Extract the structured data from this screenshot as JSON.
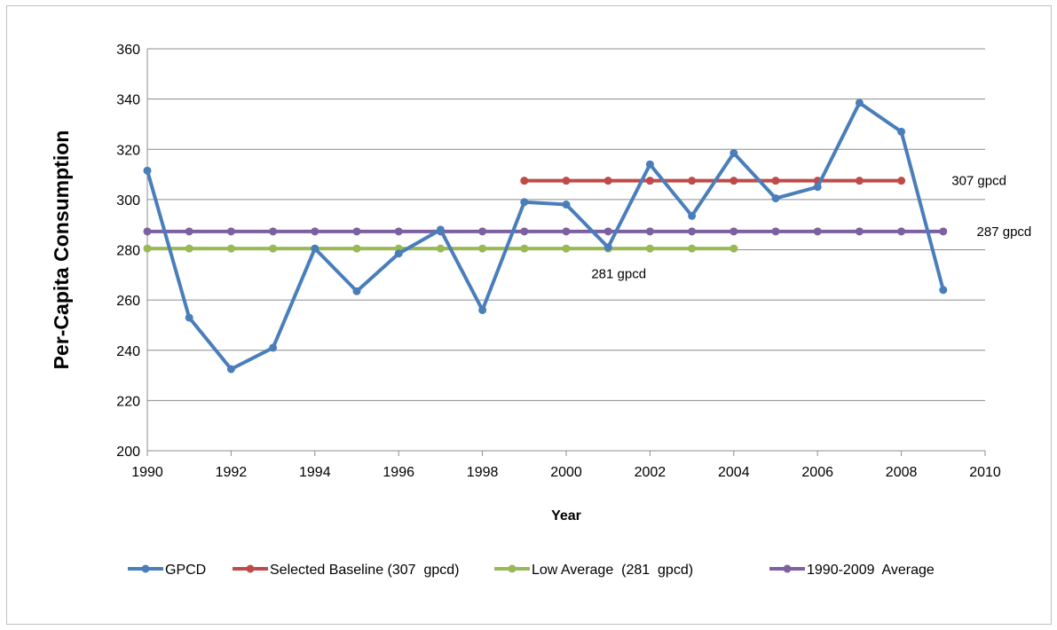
{
  "chart_data": {
    "type": "line",
    "xlabel": "Year",
    "ylabel": "Per-Capita Consumption",
    "xlim": [
      1990,
      2010
    ],
    "ylim": [
      200,
      360
    ],
    "xticks": [
      "1990",
      "1992",
      "1994",
      "1996",
      "1998",
      "2000",
      "2002",
      "2004",
      "2006",
      "2008",
      "2010"
    ],
    "yticks": [
      "200",
      "220",
      "240",
      "260",
      "280",
      "300",
      "320",
      "340",
      "360"
    ],
    "grid": "horizontal",
    "legend_position": "bottom",
    "series": [
      {
        "name": "GPCD",
        "color": "#4a7ebb",
        "points": [
          [
            1990,
            311.5
          ],
          [
            1991,
            253
          ],
          [
            1992,
            232.5
          ],
          [
            1993,
            241
          ],
          [
            1994,
            280.5
          ],
          [
            1995,
            263.5
          ],
          [
            1996,
            278.5
          ],
          [
            1997,
            288
          ],
          [
            1998,
            256
          ],
          [
            1999,
            299
          ],
          [
            2000,
            298
          ],
          [
            2001,
            281
          ],
          [
            2002,
            314
          ],
          [
            2003,
            293.5
          ],
          [
            2004,
            318.5
          ],
          [
            2005,
            300.5
          ],
          [
            2006,
            305
          ],
          [
            2007,
            338.5
          ],
          [
            2008,
            327
          ],
          [
            2009,
            264
          ]
        ]
      },
      {
        "name": "Selected Baseline (307  gpcd)",
        "color": "#be4b48",
        "points": [
          [
            1999,
            307.5
          ],
          [
            2000,
            307.5
          ],
          [
            2001,
            307.5
          ],
          [
            2002,
            307.5
          ],
          [
            2003,
            307.5
          ],
          [
            2004,
            307.5
          ],
          [
            2005,
            307.5
          ],
          [
            2006,
            307.5
          ],
          [
            2007,
            307.5
          ],
          [
            2008,
            307.5
          ]
        ]
      },
      {
        "name": "Low Average  (281  gpcd)",
        "color": "#98b954",
        "points": [
          [
            1990,
            280.5
          ],
          [
            1991,
            280.5
          ],
          [
            1992,
            280.5
          ],
          [
            1993,
            280.5
          ],
          [
            1994,
            280.5
          ],
          [
            1995,
            280.5
          ],
          [
            1996,
            280.5
          ],
          [
            1997,
            280.5
          ],
          [
            1998,
            280.5
          ],
          [
            1999,
            280.5
          ],
          [
            2000,
            280.5
          ],
          [
            2001,
            280.5
          ],
          [
            2002,
            280.5
          ],
          [
            2003,
            280.5
          ],
          [
            2004,
            280.5
          ]
        ]
      },
      {
        "name": "1990-2009  Average",
        "color": "#7d60a0",
        "points": [
          [
            1990,
            287.3
          ],
          [
            1991,
            287.3
          ],
          [
            1992,
            287.3
          ],
          [
            1993,
            287.3
          ],
          [
            1994,
            287.3
          ],
          [
            1995,
            287.3
          ],
          [
            1996,
            287.3
          ],
          [
            1997,
            287.3
          ],
          [
            1998,
            287.3
          ],
          [
            1999,
            287.3
          ],
          [
            2000,
            287.3
          ],
          [
            2001,
            287.3
          ],
          [
            2002,
            287.3
          ],
          [
            2003,
            287.3
          ],
          [
            2004,
            287.3
          ],
          [
            2005,
            287.3
          ],
          [
            2006,
            287.3
          ],
          [
            2007,
            287.3
          ],
          [
            2008,
            287.3
          ],
          [
            2009,
            287.3
          ]
        ]
      }
    ],
    "annotations": [
      {
        "text": "307 gpcd",
        "x": 2009.2,
        "y": 307.5
      },
      {
        "text": "287 gpcd",
        "x": 2009.8,
        "y": 287.3
      },
      {
        "text": "281 gpcd",
        "x": 2000.6,
        "y": 270.5
      }
    ]
  }
}
